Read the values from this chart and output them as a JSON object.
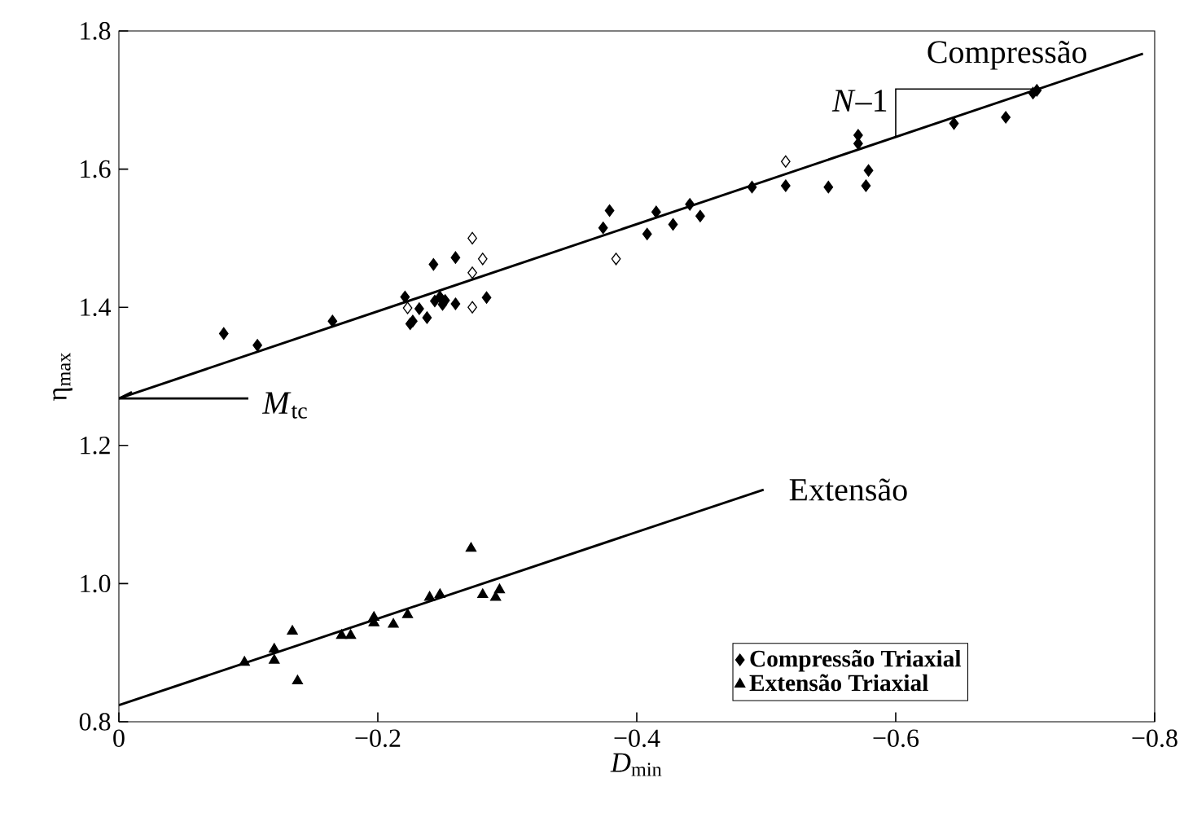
{
  "chart_data": {
    "type": "scatter",
    "xlabel": "*D*$_{min}$",
    "ylabel": "η$_{max}$",
    "xlim": [
      0,
      -0.8
    ],
    "ylim": [
      0.8,
      1.8
    ],
    "xticks": [
      0,
      {
        "value": -0.2,
        "label": "−0.2"
      },
      {
        "value": -0.4,
        "label": "−0.4"
      },
      {
        "value": -0.6,
        "label": "−0.6"
      },
      {
        "value": -0.8,
        "label": "−0.8"
      }
    ],
    "yticks": [
      {
        "value": 0.8,
        "label": "0.8"
      },
      {
        "value": 1.0,
        "label": "1.0"
      },
      {
        "value": 1.2,
        "label": "1.2"
      },
      {
        "value": 1.4,
        "label": "1.4"
      },
      {
        "value": 1.6,
        "label": "1.6"
      },
      {
        "value": 1.8,
        "label": "1.8"
      }
    ],
    "grid": false,
    "legend": "bottom right",
    "series": [
      {
        "name": "Compressão Triaxial",
        "marker": "diamond",
        "color": "#000000",
        "x": [
          -0.081,
          -0.107,
          -0.165,
          -0.221,
          -0.225,
          -0.227,
          -0.232,
          -0.238,
          -0.243,
          -0.244,
          -0.248,
          -0.25,
          -0.252,
          -0.26,
          -0.26,
          -0.284,
          -0.374,
          -0.379,
          -0.408,
          -0.415,
          -0.428,
          -0.441,
          -0.449,
          -0.489,
          -0.515,
          -0.548,
          -0.571,
          -0.571,
          -0.577,
          -0.579,
          -0.645,
          -0.685,
          -0.706,
          -0.709
        ],
        "values": [
          1.362,
          1.345,
          1.38,
          1.415,
          1.376,
          1.38,
          1.398,
          1.385,
          1.462,
          1.409,
          1.415,
          1.404,
          1.41,
          1.472,
          1.405,
          1.414,
          1.515,
          1.54,
          1.506,
          1.538,
          1.52,
          1.549,
          1.532,
          1.574,
          1.576,
          1.574,
          1.649,
          1.637,
          1.576,
          1.598,
          1.666,
          1.675,
          1.71,
          1.714
        ]
      },
      {
        "name": "Extensão Triaxial",
        "marker": "triangle",
        "color": "#000000",
        "x": [
          -0.097,
          -0.12,
          -0.12,
          -0.134,
          -0.138,
          -0.172,
          -0.179,
          -0.197,
          -0.197,
          -0.212,
          -0.223,
          -0.24,
          -0.248,
          -0.272,
          -0.281,
          -0.291,
          -0.294
        ],
        "values": [
          0.886,
          0.905,
          0.889,
          0.931,
          0.859,
          0.925,
          0.925,
          0.951,
          0.943,
          0.941,
          0.955,
          0.98,
          0.984,
          1.051,
          0.984,
          0.98,
          0.991
        ]
      },
      {
        "marker": "diamond",
        "color": "#ffffff",
        "x": [
          -0.223,
          -0.273,
          -0.281,
          -0.273,
          -0.273,
          -0.384,
          -0.515
        ],
        "values": [
          1.399,
          1.5,
          1.47,
          1.45,
          1.4,
          1.47,
          1.611
        ]
      },
      {
        "type": "line",
        "marker": "none",
        "color": "#000000",
        "x": [
          0,
          -0.791
        ],
        "values": [
          1.268,
          1.767
        ]
      },
      {
        "type": "line",
        "marker": "none",
        "color": "#000000",
        "x": [
          0,
          -0.498
        ],
        "values": [
          0.824,
          1.136
        ]
      }
    ],
    "annotations": [
      "Compressão",
      "Extensão",
      {
        "text": "*N*–1",
        "x": -0.6,
        "y": 1.646
      },
      "*M*$_{tc}$"
    ]
  }
}
